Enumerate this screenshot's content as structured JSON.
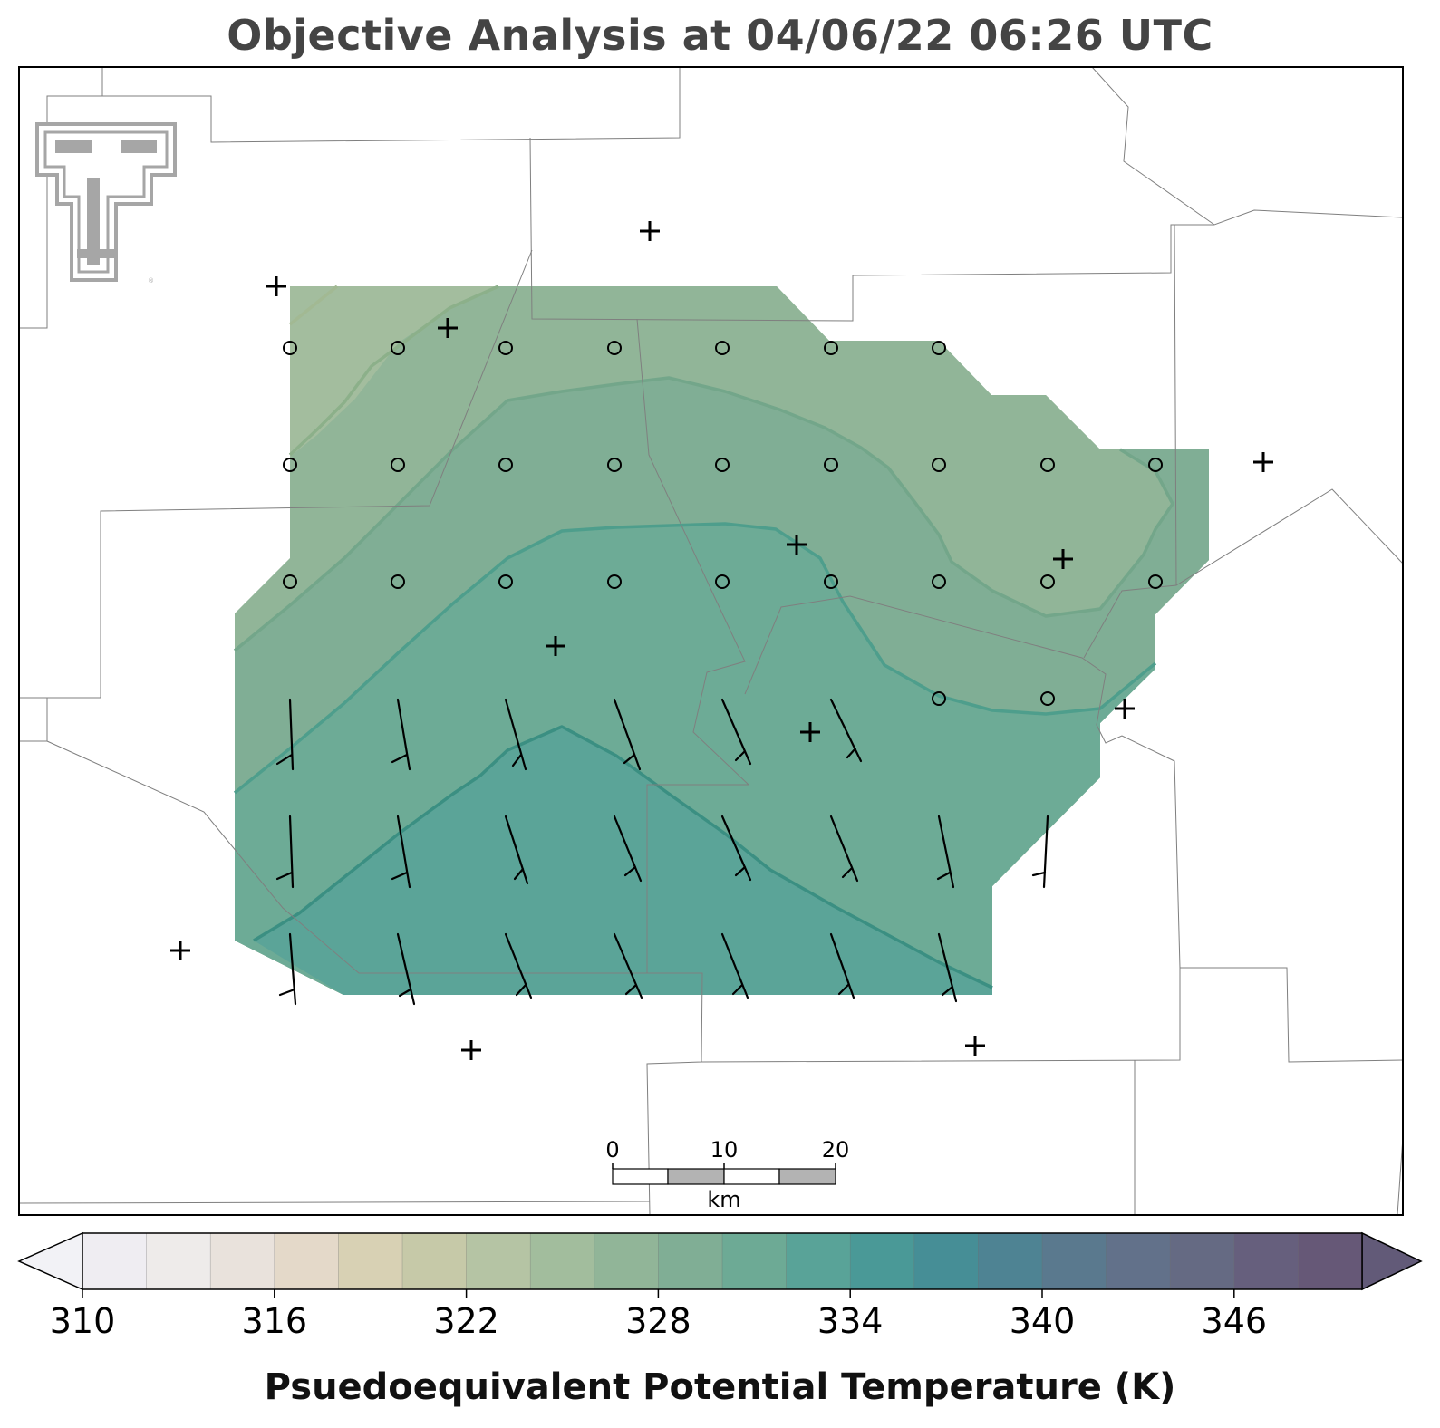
{
  "title": "Objective Analysis at 04/06/22 06:26 UTC",
  "colorbar": {
    "label": "Psuedoequivalent Potential Temperature (K)",
    "tick_values": [
      310,
      316,
      322,
      328,
      334,
      340,
      346
    ],
    "tick_labels": [
      "310",
      "316",
      "322",
      "328",
      "334",
      "340",
      "346"
    ],
    "range": [
      310,
      350
    ],
    "step": 2,
    "colors": [
      "#efedf2",
      "#eeebea",
      "#e9e2dc",
      "#e4d9c9",
      "#d8d1b4",
      "#c6c9a8",
      "#b5c4a4",
      "#a2bd9d",
      "#91b598",
      "#80ae95",
      "#6daa95",
      "#59a398",
      "#4a9997",
      "#468e96",
      "#4e8393",
      "#5a798e",
      "#62718a",
      "#656a83",
      "#665f7d",
      "#665877"
    ],
    "under_color": "#f2f2f6",
    "over_color": "#625a78"
  },
  "scale_bar": {
    "labels": [
      "0",
      "10",
      "20"
    ],
    "unit": "km"
  },
  "logo": {
    "icon": "texas-tech-double-t-logo",
    "color": "#a6a6a6"
  },
  "map": {
    "contour_colors": [
      "#a6bb95",
      "#8cb08c",
      "#6fa48a",
      "#4f9b8a",
      "#3b8f82"
    ],
    "wind_barb_color": "#000000",
    "calm_marker": "circle",
    "station_marker": "plus"
  }
}
